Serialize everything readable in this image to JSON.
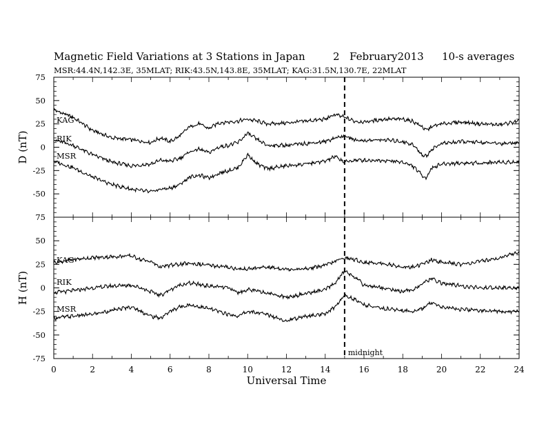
{
  "header": {
    "title": "Magnetic Field Variations at 3 Stations in Japan",
    "day": "2",
    "month_year": "February2013",
    "averaging": "10-s averages",
    "stations_line": "MSR:44.4N,142.3E, 35MLAT;  RIK:43.5N,143.8E, 35MLAT;  KAG:31.5N,130.7E, 22MLAT"
  },
  "chart_data": [
    {
      "type": "line",
      "panel": "top",
      "ylabel": "D (nT)",
      "ylim": [
        -75,
        75
      ],
      "yticks": [
        75,
        50,
        25,
        0,
        -25,
        -50,
        -75
      ],
      "xlim": [
        0,
        24
      ],
      "grid": false,
      "series": [
        {
          "name": "KAG",
          "x": [
            0,
            1,
            2,
            3,
            4,
            5,
            5.5,
            6,
            6.5,
            7,
            7.5,
            8,
            8.5,
            9,
            9.5,
            10,
            10.5,
            11,
            12,
            13,
            14,
            14.5,
            15,
            15.5,
            16,
            17,
            18,
            18.5,
            19,
            19.2,
            19.5,
            20,
            21,
            22,
            23,
            24
          ],
          "y": [
            40,
            32,
            18,
            10,
            8,
            5,
            10,
            6,
            12,
            22,
            25,
            20,
            26,
            27,
            28,
            30,
            28,
            25,
            26,
            28,
            30,
            35,
            32,
            28,
            27,
            30,
            30,
            28,
            22,
            18,
            22,
            25,
            27,
            25,
            24,
            28
          ]
        },
        {
          "name": "RIK",
          "x": [
            0,
            1,
            2,
            3,
            4,
            5,
            5.5,
            6,
            6.5,
            7,
            7.5,
            8,
            8.5,
            9,
            9.5,
            10,
            10.5,
            11,
            12,
            13,
            14,
            14.5,
            15,
            15.5,
            16,
            17,
            18,
            18.5,
            19,
            19.2,
            19.5,
            20,
            21,
            22,
            23,
            24
          ],
          "y": [
            8,
            2,
            -8,
            -16,
            -20,
            -18,
            -14,
            -15,
            -12,
            -5,
            -2,
            -6,
            0,
            2,
            5,
            15,
            8,
            2,
            2,
            4,
            6,
            10,
            12,
            8,
            7,
            8,
            6,
            3,
            -8,
            -10,
            -2,
            4,
            6,
            5,
            4,
            5
          ]
        },
        {
          "name": "MSR",
          "x": [
            0,
            1,
            2,
            3,
            4,
            5,
            5.5,
            6,
            6.5,
            7,
            7.5,
            8,
            8.5,
            9,
            9.5,
            10,
            10.5,
            11,
            12,
            13,
            14,
            14.5,
            15,
            15.5,
            16,
            17,
            18,
            18.5,
            19,
            19.2,
            19.5,
            20,
            21,
            22,
            23,
            24
          ],
          "y": [
            -15,
            -22,
            -32,
            -40,
            -45,
            -48,
            -45,
            -44,
            -40,
            -32,
            -30,
            -33,
            -28,
            -25,
            -22,
            -8,
            -18,
            -23,
            -20,
            -18,
            -15,
            -10,
            -16,
            -14,
            -14,
            -14,
            -16,
            -20,
            -30,
            -33,
            -22,
            -18,
            -17,
            -17,
            -16,
            -16
          ]
        }
      ]
    },
    {
      "type": "line",
      "panel": "bottom",
      "ylabel": "H (nT)",
      "xlabel": "Universal Time",
      "ylim": [
        -75,
        75
      ],
      "yticks": [
        75,
        50,
        25,
        0,
        -25,
        -50,
        -75
      ],
      "xlim": [
        0,
        24
      ],
      "xticks": [
        0,
        2,
        4,
        6,
        8,
        10,
        12,
        14,
        16,
        18,
        20,
        22,
        24
      ],
      "grid": false,
      "series": [
        {
          "name": "KAG",
          "x": [
            0,
            1,
            2,
            3,
            4,
            4.5,
            5,
            5.5,
            6,
            6.5,
            7,
            8,
            9,
            9.5,
            10,
            11,
            12,
            13,
            14,
            14.5,
            15,
            15.5,
            16,
            17,
            18,
            18.5,
            19,
            19.5,
            20,
            21,
            22,
            23,
            24
          ],
          "y": [
            27,
            30,
            32,
            33,
            34,
            30,
            28,
            22,
            24,
            25,
            26,
            24,
            22,
            20,
            20,
            22,
            20,
            20,
            24,
            28,
            32,
            30,
            27,
            26,
            22,
            22,
            25,
            30,
            27,
            25,
            28,
            32,
            38
          ]
        },
        {
          "name": "RIK",
          "x": [
            0,
            1,
            2,
            3,
            4,
            4.5,
            5,
            5.5,
            6,
            6.5,
            7,
            8,
            9,
            9.5,
            10,
            11,
            12,
            13,
            14,
            14.5,
            15,
            15.5,
            16,
            17,
            18,
            18.5,
            19,
            19.5,
            20,
            21,
            22,
            23,
            24
          ],
          "y": [
            -5,
            -3,
            0,
            2,
            3,
            0,
            -4,
            -8,
            -2,
            3,
            5,
            2,
            0,
            -5,
            -2,
            -5,
            -10,
            -6,
            -2,
            5,
            18,
            12,
            3,
            0,
            -4,
            -2,
            4,
            10,
            5,
            2,
            0,
            0,
            0
          ]
        },
        {
          "name": "MSR",
          "x": [
            0,
            1,
            2,
            3,
            4,
            4.5,
            5,
            5.5,
            6,
            6.5,
            7,
            8,
            9,
            9.5,
            10,
            11,
            12,
            13,
            14,
            14.5,
            15,
            15.5,
            16,
            17,
            18,
            18.5,
            19,
            19.5,
            20,
            21,
            22,
            23,
            24
          ],
          "y": [
            -32,
            -30,
            -28,
            -24,
            -20,
            -25,
            -30,
            -32,
            -25,
            -20,
            -18,
            -22,
            -28,
            -30,
            -25,
            -28,
            -35,
            -30,
            -28,
            -20,
            -8,
            -12,
            -18,
            -22,
            -24,
            -25,
            -22,
            -15,
            -20,
            -23,
            -24,
            -25,
            -25
          ]
        }
      ]
    }
  ],
  "annotations": {
    "midnight_ut": 15,
    "midnight_label": "midnight"
  }
}
